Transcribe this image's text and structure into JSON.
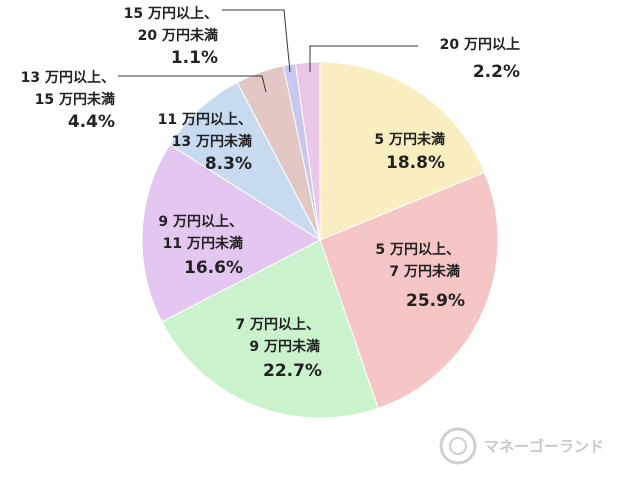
{
  "chart_data": {
    "type": "pie",
    "categories": [
      [
        "5 万円未満"
      ],
      [
        "5 万円以上、",
        "7 万円未満"
      ],
      [
        "7 万円以上、",
        "9 万円未満"
      ],
      [
        "9 万円以上、",
        "11 万円未満"
      ],
      [
        "11 万円以上、",
        "13 万円未満"
      ],
      [
        "13 万円以上、",
        "15 万円未満"
      ],
      [
        "15 万円以上、",
        "20 万円未満"
      ],
      [
        "20 万円以上"
      ]
    ],
    "values": [
      18.8,
      25.9,
      22.7,
      16.6,
      8.3,
      4.4,
      1.1,
      2.2
    ],
    "value_labels": [
      "18.8%",
      "25.9%",
      "22.7%",
      "16.6%",
      "8.3%",
      "4.4%",
      "1.1%",
      "2.2%"
    ],
    "colors": [
      "#f8eec0",
      "#f6c5c5",
      "#c9f2cd",
      "#e4c7f1",
      "#c7daf0",
      "#e3c7c5",
      "#cac7ef",
      "#eac7e6"
    ]
  },
  "watermark": "マネーゴーランド"
}
